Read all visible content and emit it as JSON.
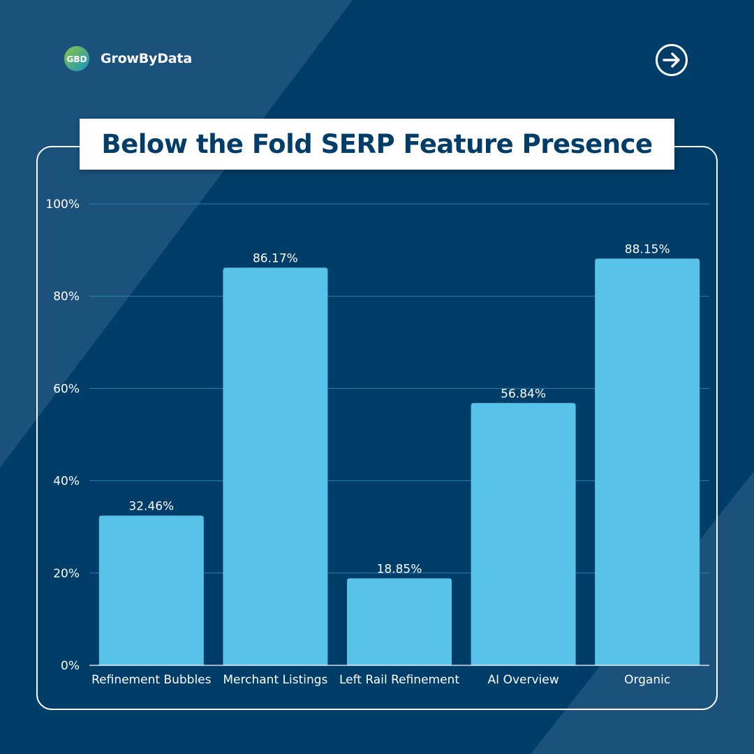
{
  "brand": {
    "name": "GrowByData",
    "logo_text": "GBD",
    "logo_icon": "growbydata-logo"
  },
  "navigation": {
    "next_icon": "arrow-right-circle-icon"
  },
  "chart_data": {
    "type": "bar",
    "title": "Below the Fold SERP Feature Presence",
    "categories": [
      "Refinement Bubbles",
      "Merchant Listings",
      "Left Rail Refinement",
      "AI Overview",
      "Organic"
    ],
    "values": [
      32.46,
      86.17,
      18.85,
      56.84,
      88.15
    ],
    "value_labels": [
      "32.46%",
      "86.17%",
      "18.85%",
      "56.84%",
      "88.15%"
    ],
    "y_ticks": [
      {
        "value": 0,
        "label": "0%"
      },
      {
        "value": 20,
        "label": "20%"
      },
      {
        "value": 40,
        "label": "40%"
      },
      {
        "value": 60,
        "label": "60%"
      },
      {
        "value": 80,
        "label": "80%"
      },
      {
        "value": 100,
        "label": "100%"
      }
    ],
    "xlabel": "",
    "ylabel": "",
    "ylim": [
      0,
      100
    ],
    "grid": true,
    "legend": "none"
  },
  "colors": {
    "background": "#003d68",
    "background_light": "#1b537d",
    "bar": "#59c2e8",
    "gridline": "#2c7eb1",
    "axis": "#ffffff",
    "title_text": "#003d68",
    "brand_green": "#8dc63f",
    "brand_blue": "#1592c9"
  }
}
